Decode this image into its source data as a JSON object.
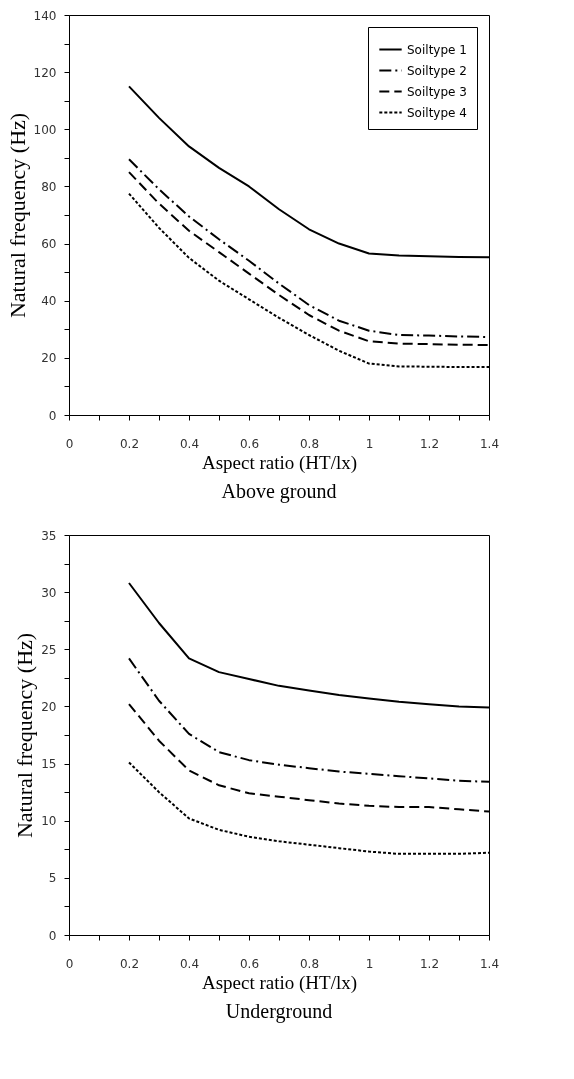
{
  "chart_data": [
    {
      "type": "line",
      "title": "Above ground",
      "xlabel": "Aspect ratio (HT/lx)",
      "ylabel": "Natural frequency (Hz)",
      "x": [
        0.2,
        0.3,
        0.4,
        0.5,
        0.6,
        0.7,
        0.8,
        0.9,
        1.0,
        1.1,
        1.2,
        1.3,
        1.4
      ],
      "series": [
        {
          "name": "Soiltype 1",
          "color": "#000000",
          "line_style": "solid",
          "values": [
            115,
            104,
            94,
            86.5,
            80,
            72,
            65,
            60,
            56.5,
            55.8,
            55.6,
            55.3,
            55.2
          ]
        },
        {
          "name": "Soiltype 2",
          "color": "#000000",
          "line_style": "dashdot",
          "values": [
            89.5,
            79,
            69.5,
            61.5,
            54,
            46,
            38.5,
            33,
            29.5,
            28,
            27.8,
            27.5,
            27.3
          ]
        },
        {
          "name": "Soiltype 3",
          "color": "#000000",
          "line_style": "dashed",
          "values": [
            85,
            74,
            64.5,
            57,
            49.5,
            42,
            35,
            29.5,
            25.8,
            25,
            24.8,
            24.6,
            24.5
          ]
        },
        {
          "name": "Soiltype 4",
          "color": "#000000",
          "line_style": "dotted",
          "values": [
            77.5,
            65.5,
            55,
            47,
            40.5,
            34,
            28,
            22.5,
            18,
            17,
            16.9,
            16.8,
            16.8
          ]
        }
      ],
      "xlim": [
        0,
        1.4
      ],
      "xticks": [
        0,
        {
          "value": 0.1,
          "label": null
        },
        0.2,
        {
          "value": 0.3,
          "label": null
        },
        0.4,
        {
          "value": 0.5,
          "label": null
        },
        0.6,
        {
          "value": 0.7,
          "label": null
        },
        0.8,
        {
          "value": 0.9,
          "label": null
        },
        1,
        {
          "value": 1.1,
          "label": null
        },
        1.2,
        {
          "value": 1.3,
          "label": null
        },
        1.4
      ],
      "ylim": [
        0,
        140
      ],
      "yticks": [
        0,
        {
          "value": 10,
          "label": null
        },
        20,
        {
          "value": 30,
          "label": null
        },
        40,
        {
          "value": 50,
          "label": null
        },
        60,
        {
          "value": 70,
          "label": null
        },
        80,
        {
          "value": 90,
          "label": null
        },
        100,
        {
          "value": 110,
          "label": null
        },
        120,
        {
          "value": 130,
          "label": null
        },
        140
      ],
      "grid": false,
      "legend": "top right",
      "marker": "none"
    },
    {
      "type": "line",
      "title": "Underground",
      "xlabel": "Aspect ratio (HT/lx)",
      "ylabel": "Natural frequency (Hz)",
      "x": [
        0.2,
        0.3,
        0.4,
        0.5,
        0.6,
        0.7,
        0.8,
        0.9,
        1.0,
        1.1,
        1.2,
        1.3,
        1.4
      ],
      "series": [
        {
          "name": "Soiltype 1",
          "color": "#000000",
          "line_style": "solid",
          "values": [
            30.8,
            27.3,
            24.2,
            23,
            22.4,
            21.8,
            21.4,
            21,
            20.7,
            20.4,
            20.2,
            20.0,
            19.9
          ]
        },
        {
          "name": "Soiltype 2",
          "color": "#000000",
          "line_style": "dashdot",
          "values": [
            24.2,
            20.5,
            17.6,
            16.0,
            15.3,
            14.9,
            14.6,
            14.3,
            14.1,
            13.9,
            13.7,
            13.5,
            13.4
          ]
        },
        {
          "name": "Soiltype 3",
          "color": "#000000",
          "line_style": "dashed",
          "values": [
            20.2,
            17.0,
            14.4,
            13.1,
            12.4,
            12.1,
            11.8,
            11.5,
            11.3,
            11.2,
            11.2,
            11.0,
            10.8
          ]
        },
        {
          "name": "Soiltype 4",
          "color": "#000000",
          "line_style": "dotted",
          "values": [
            15.1,
            12.5,
            10.2,
            9.2,
            8.6,
            8.2,
            7.9,
            7.6,
            7.3,
            7.1,
            7.1,
            7.1,
            7.2
          ]
        }
      ],
      "xlim": [
        0,
        1.4
      ],
      "xticks": [
        0,
        {
          "value": 0.1,
          "label": null
        },
        0.2,
        {
          "value": 0.3,
          "label": null
        },
        0.4,
        {
          "value": 0.5,
          "label": null
        },
        0.6,
        {
          "value": 0.7,
          "label": null
        },
        0.8,
        {
          "value": 0.9,
          "label": null
        },
        1,
        {
          "value": 1.1,
          "label": null
        },
        1.2,
        {
          "value": 1.3,
          "label": null
        },
        1.4
      ],
      "ylim": [
        0,
        35
      ],
      "yticks": [
        0,
        {
          "value": 2.5,
          "label": null
        },
        5,
        {
          "value": 7.5,
          "label": null
        },
        10,
        {
          "value": 12.5,
          "label": null
        },
        15,
        {
          "value": 17.5,
          "label": null
        },
        20,
        {
          "value": 22.5,
          "label": null
        },
        25,
        {
          "value": 27.5,
          "label": null
        },
        30,
        {
          "value": 32.5,
          "label": null
        },
        35
      ],
      "grid": false,
      "legend": "top right",
      "marker": "none"
    }
  ]
}
